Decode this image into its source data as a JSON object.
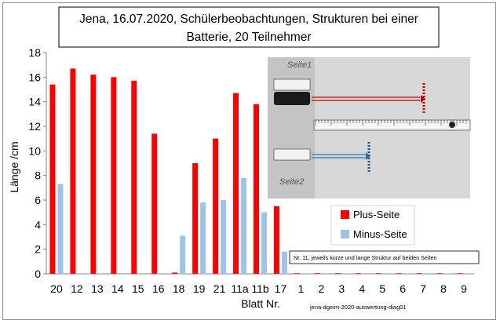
{
  "chart_data": {
    "type": "bar",
    "title_lines": [
      "Jena, 16.07.2020,  Schülerbeobachtungen, Strukturen bei einer",
      "Batterie, 20 Teilnehmer"
    ],
    "xlabel": "Blatt Nr.",
    "ylabel": "Länge /cm",
    "ylim": [
      0,
      18
    ],
    "yticks": [
      0,
      2,
      4,
      6,
      8,
      10,
      12,
      14,
      16,
      18
    ],
    "grid": false,
    "legend_position": "right",
    "categories": [
      "20",
      "12",
      "13",
      "14",
      "15",
      "16",
      "18",
      "19",
      "21",
      "11a",
      "11b",
      "17",
      "1",
      "2",
      "3",
      "4",
      "5",
      "6",
      "7",
      "8",
      "9"
    ],
    "series": [
      {
        "name": "Plus-Seite",
        "color": "#ff0000",
        "values": [
          15.4,
          16.7,
          16.2,
          16.0,
          15.7,
          11.4,
          0.1,
          9.0,
          11.0,
          14.7,
          13.8,
          5.5,
          0.05,
          0.05,
          0.05,
          0.05,
          0.05,
          0.05,
          0.05,
          0.05,
          0.05
        ]
      },
      {
        "name": "Minus-Seite",
        "color": "#9dc3e6",
        "values": [
          7.3,
          0.05,
          0.05,
          0.0,
          0.0,
          0.0,
          3.1,
          5.8,
          6.0,
          7.8,
          5.0,
          1.8,
          0.05,
          0.05,
          0.05,
          0.05,
          0.05,
          0.05,
          0.05,
          0.05,
          0.05
        ]
      }
    ],
    "annotation": "Nr. 11, jeweils kurze und lange Struktur auf beiden Seiten",
    "footer": "jena-dgeim-2020-auswertung-diag01"
  },
  "photo": {
    "label_top": "Seite1",
    "label_bottom": "Seite2"
  }
}
